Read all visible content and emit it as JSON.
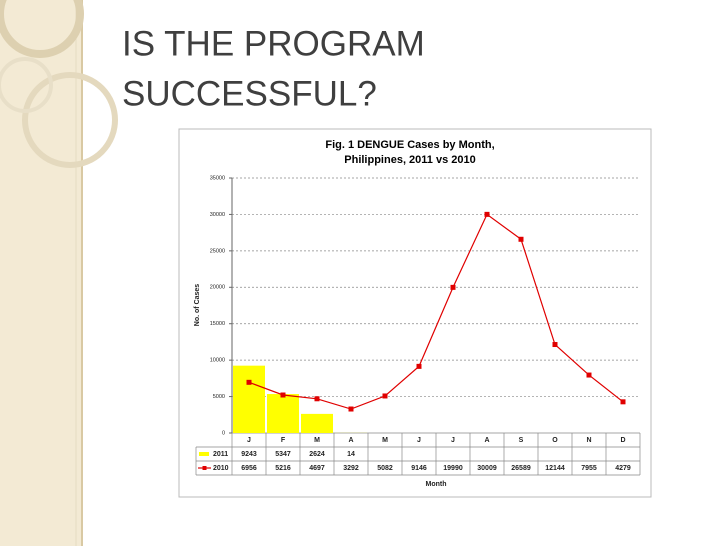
{
  "slide_title": [
    "IS THE PROGRAM",
    "SUCCESSFUL?"
  ],
  "chart_data": {
    "type": "bar-line",
    "title": "Fig. 1 DENGUE Cases by Month,",
    "subtitle": "Philippines, 2011 vs 2010",
    "ylabel": "No. of Cases",
    "xlabel": "Month",
    "categories": [
      "J",
      "F",
      "M",
      "A",
      "M",
      "J",
      "J",
      "A",
      "S",
      "O",
      "N",
      "D"
    ],
    "series": [
      {
        "name": "2011",
        "type": "bar",
        "color": "#ffff00",
        "values": [
          9243,
          5347,
          2624,
          14,
          null,
          null,
          null,
          null,
          null,
          null,
          null,
          null
        ]
      },
      {
        "name": "2010",
        "type": "line",
        "color": "#e00000",
        "values": [
          6956,
          5216,
          4697,
          3292,
          5082,
          9146,
          19990,
          30009,
          26589,
          12144,
          7955,
          4279
        ]
      }
    ],
    "ylim": [
      0,
      35000
    ],
    "yticks": [
      0,
      5000,
      10000,
      15000,
      20000,
      25000,
      30000,
      35000
    ],
    "grid": true
  }
}
